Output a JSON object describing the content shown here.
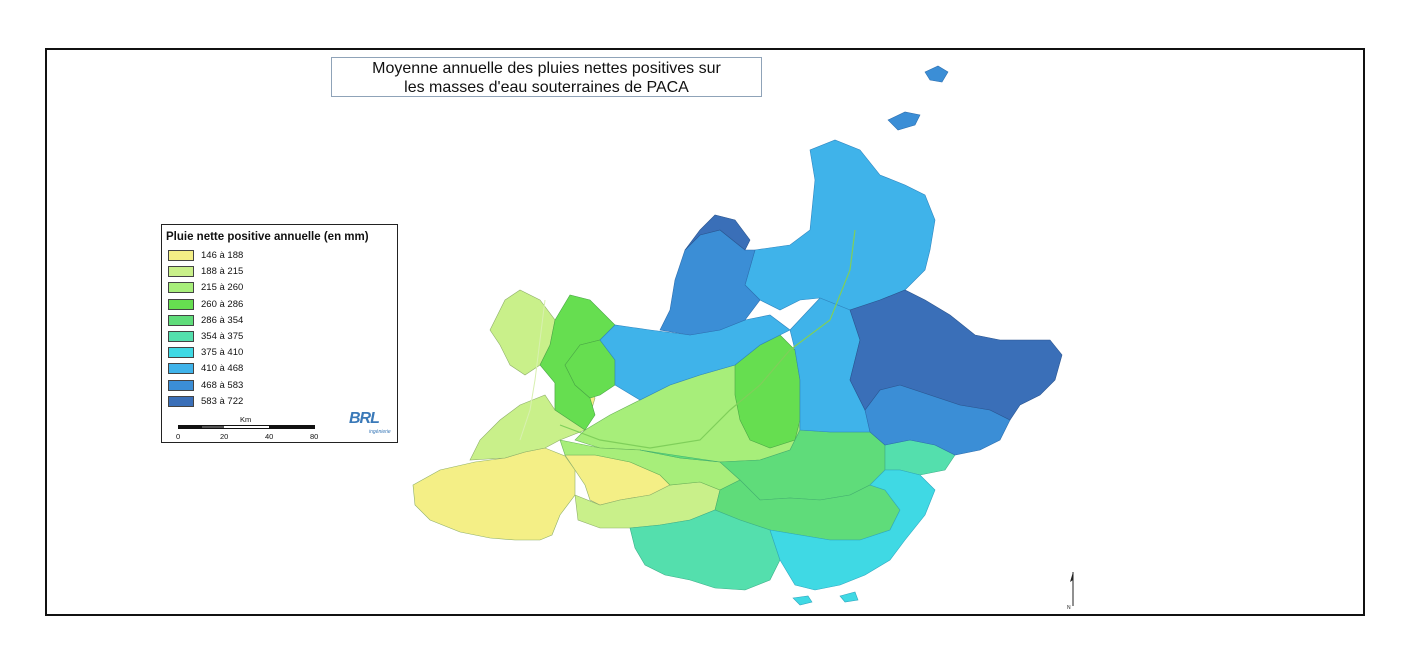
{
  "title": {
    "line1": "Moyenne annuelle des pluies nettes positives sur",
    "line2": "les masses d'eau souterraines de PACA"
  },
  "legend": {
    "title": "Pluie nette positive annuelle (en mm)",
    "classes": [
      {
        "label": "146 à 188",
        "color": "#f4ef86"
      },
      {
        "label": "188 à 215",
        "color": "#c9f08a"
      },
      {
        "label": "215 à 260",
        "color": "#a7ee7a"
      },
      {
        "label": "260 à 286",
        "color": "#66de50"
      },
      {
        "label": "286 à 354",
        "color": "#5fdc7a"
      },
      {
        "label": "354 à 375",
        "color": "#54dfad"
      },
      {
        "label": "375 à 410",
        "color": "#3fd9e4"
      },
      {
        "label": "410 à 468",
        "color": "#3fb3ea"
      },
      {
        "label": "468 à 583",
        "color": "#3b8ed6"
      },
      {
        "label": "583 à 722",
        "color": "#3a6fb8"
      }
    ]
  },
  "scale": {
    "unit": "Km",
    "ticks": [
      "0",
      "20",
      "40",
      "80"
    ]
  },
  "logo": {
    "text": "BRL",
    "subtext": "ingénierie"
  }
}
